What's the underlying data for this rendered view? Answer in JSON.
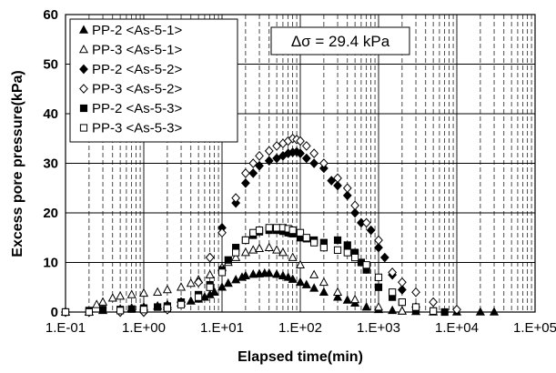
{
  "chart_data": {
    "type": "scatter",
    "title": "",
    "xlabel": "Elapsed time(min)",
    "ylabel": "Excess pore pressure(kPa)",
    "xscale": "log",
    "xlim": [
      0.1,
      100000
    ],
    "ylim": [
      0,
      60
    ],
    "x_tick_labels": [
      "1.E-01",
      "1.E+00",
      "1.E+01",
      "1.E+02",
      "1.E+03",
      "1.E+04",
      "1.E+05"
    ],
    "y_tick_labels": [
      "0",
      "10",
      "20",
      "30",
      "40",
      "50",
      "60"
    ],
    "grid": "on (solid major lines, dashed minor log lines)",
    "legend_position": "top-left",
    "annotation": "Δσ = 29.4 kPa",
    "series": [
      {
        "name": "PP-2 <As-5-1>",
        "marker": "filled-triangle",
        "x": [
          0.1,
          0.2,
          0.3,
          0.5,
          0.7,
          1,
          1.5,
          2,
          3,
          4,
          5,
          6,
          7,
          8,
          10,
          12,
          15,
          18,
          20,
          25,
          30,
          35,
          40,
          50,
          60,
          70,
          80,
          100,
          120,
          150,
          200,
          300,
          400,
          500,
          700,
          1000,
          1500,
          2000,
          3000,
          5000,
          10000,
          20000,
          30000
        ],
        "y": [
          0,
          0,
          0.3,
          0.6,
          0.8,
          1.0,
          1.2,
          1.5,
          1.8,
          2.2,
          2.6,
          3.0,
          3.5,
          4.0,
          5.0,
          5.8,
          6.5,
          7.0,
          7.3,
          7.6,
          7.7,
          7.8,
          7.8,
          7.6,
          7.3,
          7.0,
          6.6,
          6.0,
          5.5,
          4.8,
          4.0,
          3.0,
          2.4,
          1.8,
          1.0,
          0.5,
          0.3,
          0.2,
          0.1,
          0,
          0,
          0,
          0
        ]
      },
      {
        "name": "PP-3 <As-5-1>",
        "marker": "open-triangle",
        "x": [
          0.1,
          0.2,
          0.25,
          0.3,
          0.4,
          0.5,
          0.7,
          1,
          1.5,
          2,
          3,
          4,
          5,
          7,
          10,
          12,
          15,
          20,
          25,
          30,
          40,
          50,
          60,
          80,
          100,
          150,
          200,
          300,
          500,
          1000,
          2000
        ],
        "y": [
          0,
          0,
          1.5,
          2.0,
          2.8,
          3.2,
          3.5,
          3.8,
          4.0,
          4.5,
          5.0,
          5.8,
          6.5,
          7.5,
          9.0,
          10.0,
          11.0,
          12.0,
          12.5,
          12.8,
          13.0,
          12.5,
          12.0,
          11.0,
          9.5,
          7.5,
          6.0,
          4.0,
          2.5,
          1.0,
          0.2
        ]
      },
      {
        "name": "PP-2 <As-5-2>",
        "marker": "filled-diamond",
        "x": [
          0.1,
          0.2,
          0.5,
          1,
          2,
          3,
          5,
          7,
          10,
          15,
          20,
          25,
          30,
          40,
          50,
          60,
          70,
          80,
          90,
          100,
          120,
          150,
          200,
          250,
          300,
          400,
          500,
          600,
          800,
          1000,
          1200,
          1500,
          2000,
          3000
        ],
        "y": [
          0,
          0,
          0,
          0,
          0.5,
          2.0,
          6.0,
          11.0,
          17.0,
          22.0,
          26.0,
          28.0,
          29.5,
          30.5,
          31.0,
          31.5,
          32.0,
          32.2,
          32.3,
          32.0,
          31.0,
          30.0,
          29.0,
          26.5,
          25.5,
          23.5,
          20.0,
          18.0,
          16.5,
          13.0,
          11.0,
          7.5,
          4.5,
          1.0
        ]
      },
      {
        "name": "PP-3 <As-5-2>",
        "marker": "open-diamond",
        "x": [
          0.1,
          0.2,
          0.5,
          1,
          2,
          3,
          5,
          7,
          10,
          15,
          20,
          25,
          30,
          40,
          50,
          60,
          70,
          80,
          90,
          100,
          120,
          150,
          200,
          300,
          400,
          500,
          700,
          1000,
          1500,
          2000,
          3000,
          5000,
          10000
        ],
        "y": [
          0,
          0,
          0,
          0,
          0.5,
          2.0,
          6.0,
          11.0,
          16.0,
          23.0,
          28.0,
          30.0,
          31.5,
          32.5,
          33.5,
          34.0,
          34.5,
          35.0,
          34.8,
          34.5,
          33.5,
          32.0,
          30.0,
          27.0,
          25.0,
          21.5,
          18.0,
          14.5,
          8.0,
          6.0,
          4.0,
          2.0,
          0.5
        ]
      },
      {
        "name": "PP-2 <As-5-3>",
        "marker": "filled-square",
        "x": [
          0.1,
          0.2,
          0.3,
          0.5,
          0.7,
          1,
          1.5,
          2,
          3,
          5,
          7,
          10,
          12,
          15,
          20,
          25,
          30,
          40,
          50,
          60,
          70,
          80,
          100,
          120,
          150,
          200,
          300,
          400,
          500,
          600,
          700,
          1000,
          1500,
          2000,
          3000,
          5000,
          7000
        ],
        "y": [
          0,
          0.3,
          0.5,
          0.5,
          0.6,
          0.8,
          1.0,
          1.2,
          2.0,
          3.5,
          5.5,
          8.5,
          10.5,
          13.0,
          14.5,
          15.5,
          16.2,
          16.5,
          16.5,
          16.3,
          16.0,
          15.8,
          15.0,
          14.8,
          14.5,
          14.0,
          14.5,
          13.5,
          12.0,
          10.0,
          8.5,
          5.0,
          3.0,
          2.0,
          0.5,
          0.2,
          0
        ]
      },
      {
        "name": "PP-3 <As-5-3>",
        "marker": "open-square",
        "x": [
          0.1,
          0.2,
          0.5,
          1,
          2,
          3,
          5,
          7,
          10,
          15,
          20,
          25,
          30,
          40,
          50,
          60,
          70,
          80,
          100,
          120,
          150,
          200,
          300,
          400,
          500,
          700,
          1000,
          1500,
          2000,
          3000,
          5000
        ],
        "y": [
          0,
          0,
          0.3,
          0.5,
          0.8,
          1.5,
          3.0,
          5.0,
          8.0,
          12.0,
          14.5,
          16.0,
          16.5,
          17.0,
          17.0,
          17.0,
          16.8,
          16.5,
          16.0,
          15.0,
          14.0,
          13.0,
          12.5,
          12.0,
          11.0,
          9.5,
          7.0,
          4.0,
          2.0,
          1.0,
          0.2
        ]
      }
    ]
  }
}
